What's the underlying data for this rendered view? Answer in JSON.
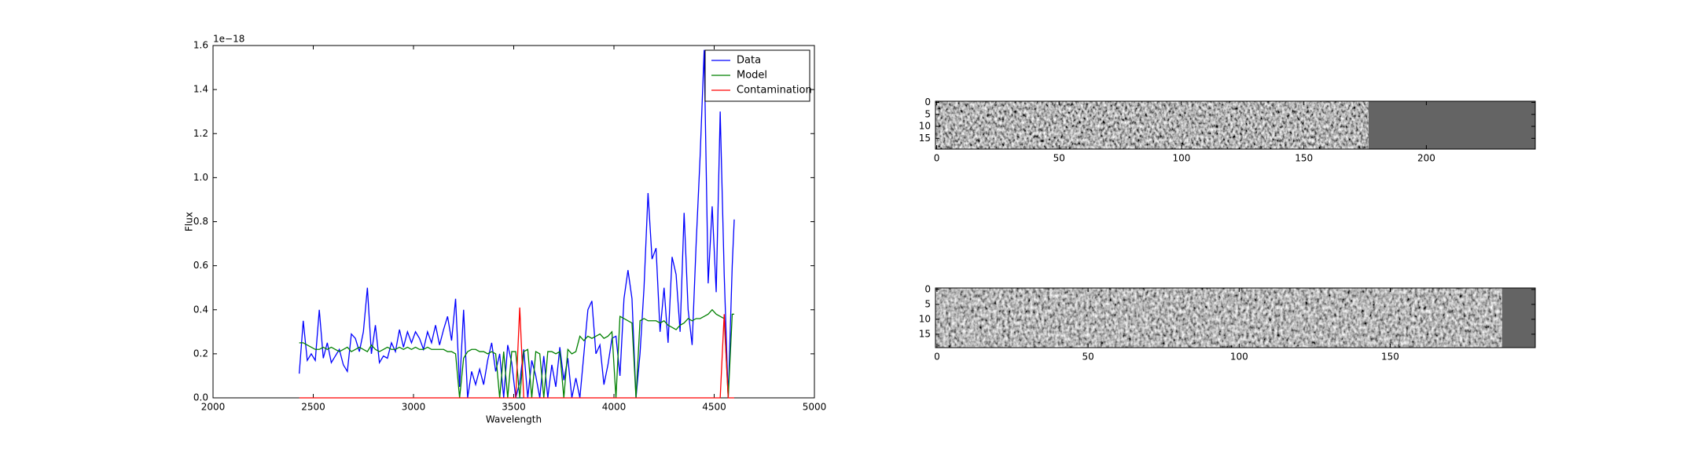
{
  "chart_data": [
    {
      "type": "line",
      "x_label": "Wavelength",
      "y_label": "Flux",
      "y_offset_label": "1e−18",
      "xlim": [
        2000,
        5000
      ],
      "xticks": [
        2000,
        2500,
        3000,
        3500,
        4000,
        4500,
        5000
      ],
      "ylim": [
        0,
        1.6
      ],
      "yticks": [
        {
          "value": 0,
          "label": "0.0"
        },
        {
          "value": 0.2,
          "label": "0.2"
        },
        {
          "value": 0.4,
          "label": "0.4"
        },
        {
          "value": 0.6,
          "label": "0.6"
        },
        {
          "value": 0.8,
          "label": "0.8"
        },
        {
          "value": 1.0,
          "label": "1.0"
        },
        {
          "value": 1.2,
          "label": "1.2"
        },
        {
          "value": 1.4,
          "label": "1.4"
        },
        {
          "value": 1.6,
          "label": "1.6"
        }
      ],
      "legend": "upper right",
      "x": [
        2430,
        2450,
        2470,
        2490,
        2510,
        2530,
        2550,
        2570,
        2590,
        2610,
        2630,
        2650,
        2670,
        2690,
        2710,
        2730,
        2750,
        2770,
        2790,
        2810,
        2830,
        2850,
        2870,
        2890,
        2910,
        2930,
        2950,
        2970,
        2990,
        3010,
        3030,
        3050,
        3070,
        3090,
        3110,
        3130,
        3150,
        3170,
        3190,
        3210,
        3230,
        3250,
        3270,
        3290,
        3310,
        3330,
        3350,
        3370,
        3390,
        3410,
        3430,
        3450,
        3470,
        3490,
        3510,
        3530,
        3550,
        3570,
        3590,
        3610,
        3630,
        3650,
        3670,
        3690,
        3710,
        3730,
        3750,
        3770,
        3790,
        3810,
        3830,
        3850,
        3870,
        3890,
        3910,
        3930,
        3950,
        3970,
        3990,
        4010,
        4030,
        4050,
        4070,
        4090,
        4110,
        4130,
        4150,
        4170,
        4190,
        4210,
        4230,
        4250,
        4270,
        4290,
        4310,
        4330,
        4350,
        4370,
        4390,
        4410,
        4430,
        4450,
        4470,
        4490,
        4510,
        4530,
        4550,
        4570,
        4590,
        4600
      ],
      "series": [
        {
          "name": "Data",
          "color": "#0000ff",
          "values": [
            0.11,
            0.35,
            0.17,
            0.2,
            0.17,
            0.4,
            0.18,
            0.25,
            0.16,
            0.19,
            0.22,
            0.15,
            0.12,
            0.29,
            0.27,
            0.21,
            0.3,
            0.5,
            0.2,
            0.33,
            0.16,
            0.19,
            0.18,
            0.25,
            0.21,
            0.31,
            0.23,
            0.3,
            0.25,
            0.3,
            0.27,
            0.22,
            0.3,
            0.25,
            0.33,
            0.24,
            0.31,
            0.37,
            0.26,
            0.45,
            0.05,
            0.4,
            0.0,
            0.12,
            0.06,
            0.13,
            0.06,
            0.17,
            0.25,
            0.12,
            0.2,
            0.0,
            0.24,
            0.16,
            0.0,
            0.07,
            0.22,
            0.0,
            0.17,
            0.1,
            0.0,
            0.19,
            0.0,
            0.15,
            0.05,
            0.23,
            0.08,
            0.18,
            0.0,
            0.09,
            0.0,
            0.2,
            0.4,
            0.44,
            0.2,
            0.24,
            0.06,
            0.15,
            0.27,
            0.28,
            0.1,
            0.45,
            0.58,
            0.45,
            0.0,
            0.2,
            0.5,
            0.93,
            0.63,
            0.68,
            0.3,
            0.5,
            0.25,
            0.64,
            0.56,
            0.3,
            0.84,
            0.4,
            0.24,
            0.7,
            1.1,
            1.58,
            0.52,
            0.87,
            0.48,
            1.3,
            0.56,
            0.0,
            0.6,
            0.81
          ]
        },
        {
          "name": "Model",
          "color": "#008000",
          "values": [
            0.25,
            0.25,
            0.24,
            0.23,
            0.22,
            0.22,
            0.23,
            0.22,
            0.23,
            0.22,
            0.21,
            0.22,
            0.23,
            0.21,
            0.22,
            0.23,
            0.22,
            0.21,
            0.24,
            0.22,
            0.21,
            0.22,
            0.23,
            0.22,
            0.22,
            0.23,
            0.22,
            0.23,
            0.22,
            0.23,
            0.22,
            0.22,
            0.23,
            0.22,
            0.22,
            0.22,
            0.22,
            0.21,
            0.21,
            0.2,
            0.0,
            0.18,
            0.21,
            0.22,
            0.22,
            0.21,
            0.21,
            0.2,
            0.21,
            0.2,
            0.0,
            0.21,
            0.0,
            0.21,
            0.21,
            0.0,
            0.21,
            0.22,
            0.0,
            0.21,
            0.2,
            0.0,
            0.21,
            0.21,
            0.2,
            0.21,
            0.0,
            0.22,
            0.2,
            0.21,
            0.28,
            0.26,
            0.28,
            0.27,
            0.28,
            0.29,
            0.27,
            0.28,
            0.3,
            0.0,
            0.37,
            0.36,
            0.35,
            0.34,
            0.0,
            0.35,
            0.36,
            0.35,
            0.35,
            0.35,
            0.34,
            0.35,
            0.33,
            0.32,
            0.31,
            0.33,
            0.34,
            0.36,
            0.35,
            0.36,
            0.36,
            0.37,
            0.38,
            0.4,
            0.38,
            0.37,
            0.36,
            0.0,
            0.38,
            0.38
          ]
        },
        {
          "name": "Contamination",
          "color": "#ff0000",
          "values": [
            0,
            0,
            0,
            0,
            0,
            0,
            0,
            0,
            0,
            0,
            0,
            0,
            0,
            0,
            0,
            0,
            0,
            0,
            0,
            0,
            0,
            0,
            0,
            0,
            0,
            0,
            0,
            0,
            0,
            0,
            0,
            0,
            0,
            0,
            0,
            0,
            0,
            0,
            0,
            0,
            0,
            0,
            0,
            0,
            0,
            0,
            0,
            0,
            0,
            0,
            0,
            0,
            0,
            0,
            0,
            0.41,
            0,
            0,
            0,
            0,
            0,
            0,
            0,
            0,
            0,
            0,
            0,
            0,
            0,
            0,
            0,
            0,
            0,
            0,
            0,
            0,
            0,
            0,
            0,
            0,
            0,
            0,
            0,
            0,
            0,
            0,
            0,
            0,
            0,
            0,
            0,
            0,
            0,
            0,
            0,
            0,
            0,
            0,
            0,
            0,
            0,
            0,
            0,
            0,
            0,
            0,
            0.38,
            0,
            0,
            0
          ]
        }
      ]
    },
    {
      "type": "heatmap",
      "xlim": [
        -0.5,
        244.5
      ],
      "xticks": [
        0,
        50,
        100,
        150,
        200
      ],
      "ylim": [
        -0.5,
        19.5
      ],
      "yticks": [
        0,
        5,
        10,
        15
      ],
      "y_inverted": true
    },
    {
      "type": "heatmap",
      "xlim": [
        -0.5,
        198
      ],
      "xticks": [
        0,
        50,
        100,
        150
      ],
      "ylim": [
        -0.5,
        19.5
      ],
      "yticks": [
        0,
        5,
        10,
        15
      ],
      "y_inverted": true
    }
  ]
}
